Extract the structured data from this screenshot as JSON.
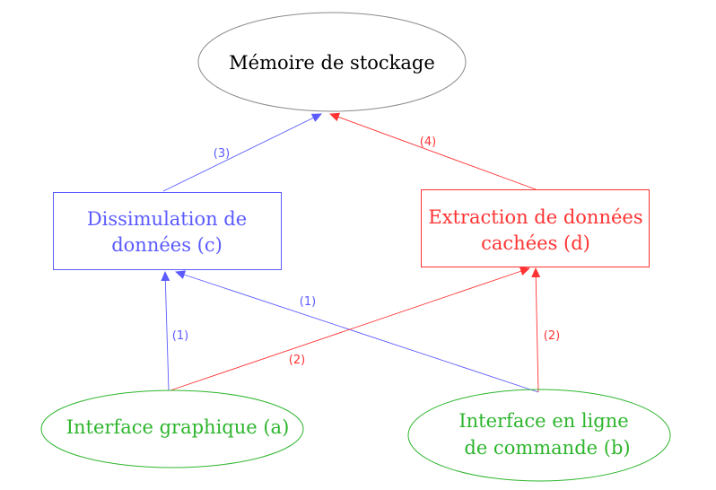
{
  "colors": {
    "blue": "#5b5bff",
    "red": "#ff3333",
    "green": "#2db52d",
    "gray": "#8a8a8a",
    "black": "#000000"
  },
  "nodes": {
    "storage": {
      "label": "Mémoire de stockage",
      "color": "black",
      "shape": "ellipse"
    },
    "dissimulation": {
      "line1": "Dissimulation de",
      "line2": "données (c)",
      "color": "blue",
      "shape": "rectangle"
    },
    "extraction": {
      "line1": "Extraction de données",
      "line2": "cachées (d)",
      "color": "red",
      "shape": "rectangle"
    },
    "gui": {
      "label": "Interface graphique (a)",
      "color": "green",
      "shape": "ellipse"
    },
    "cli": {
      "line1": "Interface en ligne",
      "line2": "de commande (b)",
      "color": "green",
      "shape": "ellipse"
    }
  },
  "edges": {
    "gui_to_dissimulation": {
      "label": "(1)",
      "color": "blue"
    },
    "cli_to_dissimulation": {
      "label": "(1)",
      "color": "blue"
    },
    "gui_to_extraction": {
      "label": "(2)",
      "color": "red"
    },
    "cli_to_extraction": {
      "label": "(2)",
      "color": "red"
    },
    "dissimulation_to_storage": {
      "label": "(3)",
      "color": "blue"
    },
    "extraction_to_storage": {
      "label": "(4)",
      "color": "red"
    }
  }
}
